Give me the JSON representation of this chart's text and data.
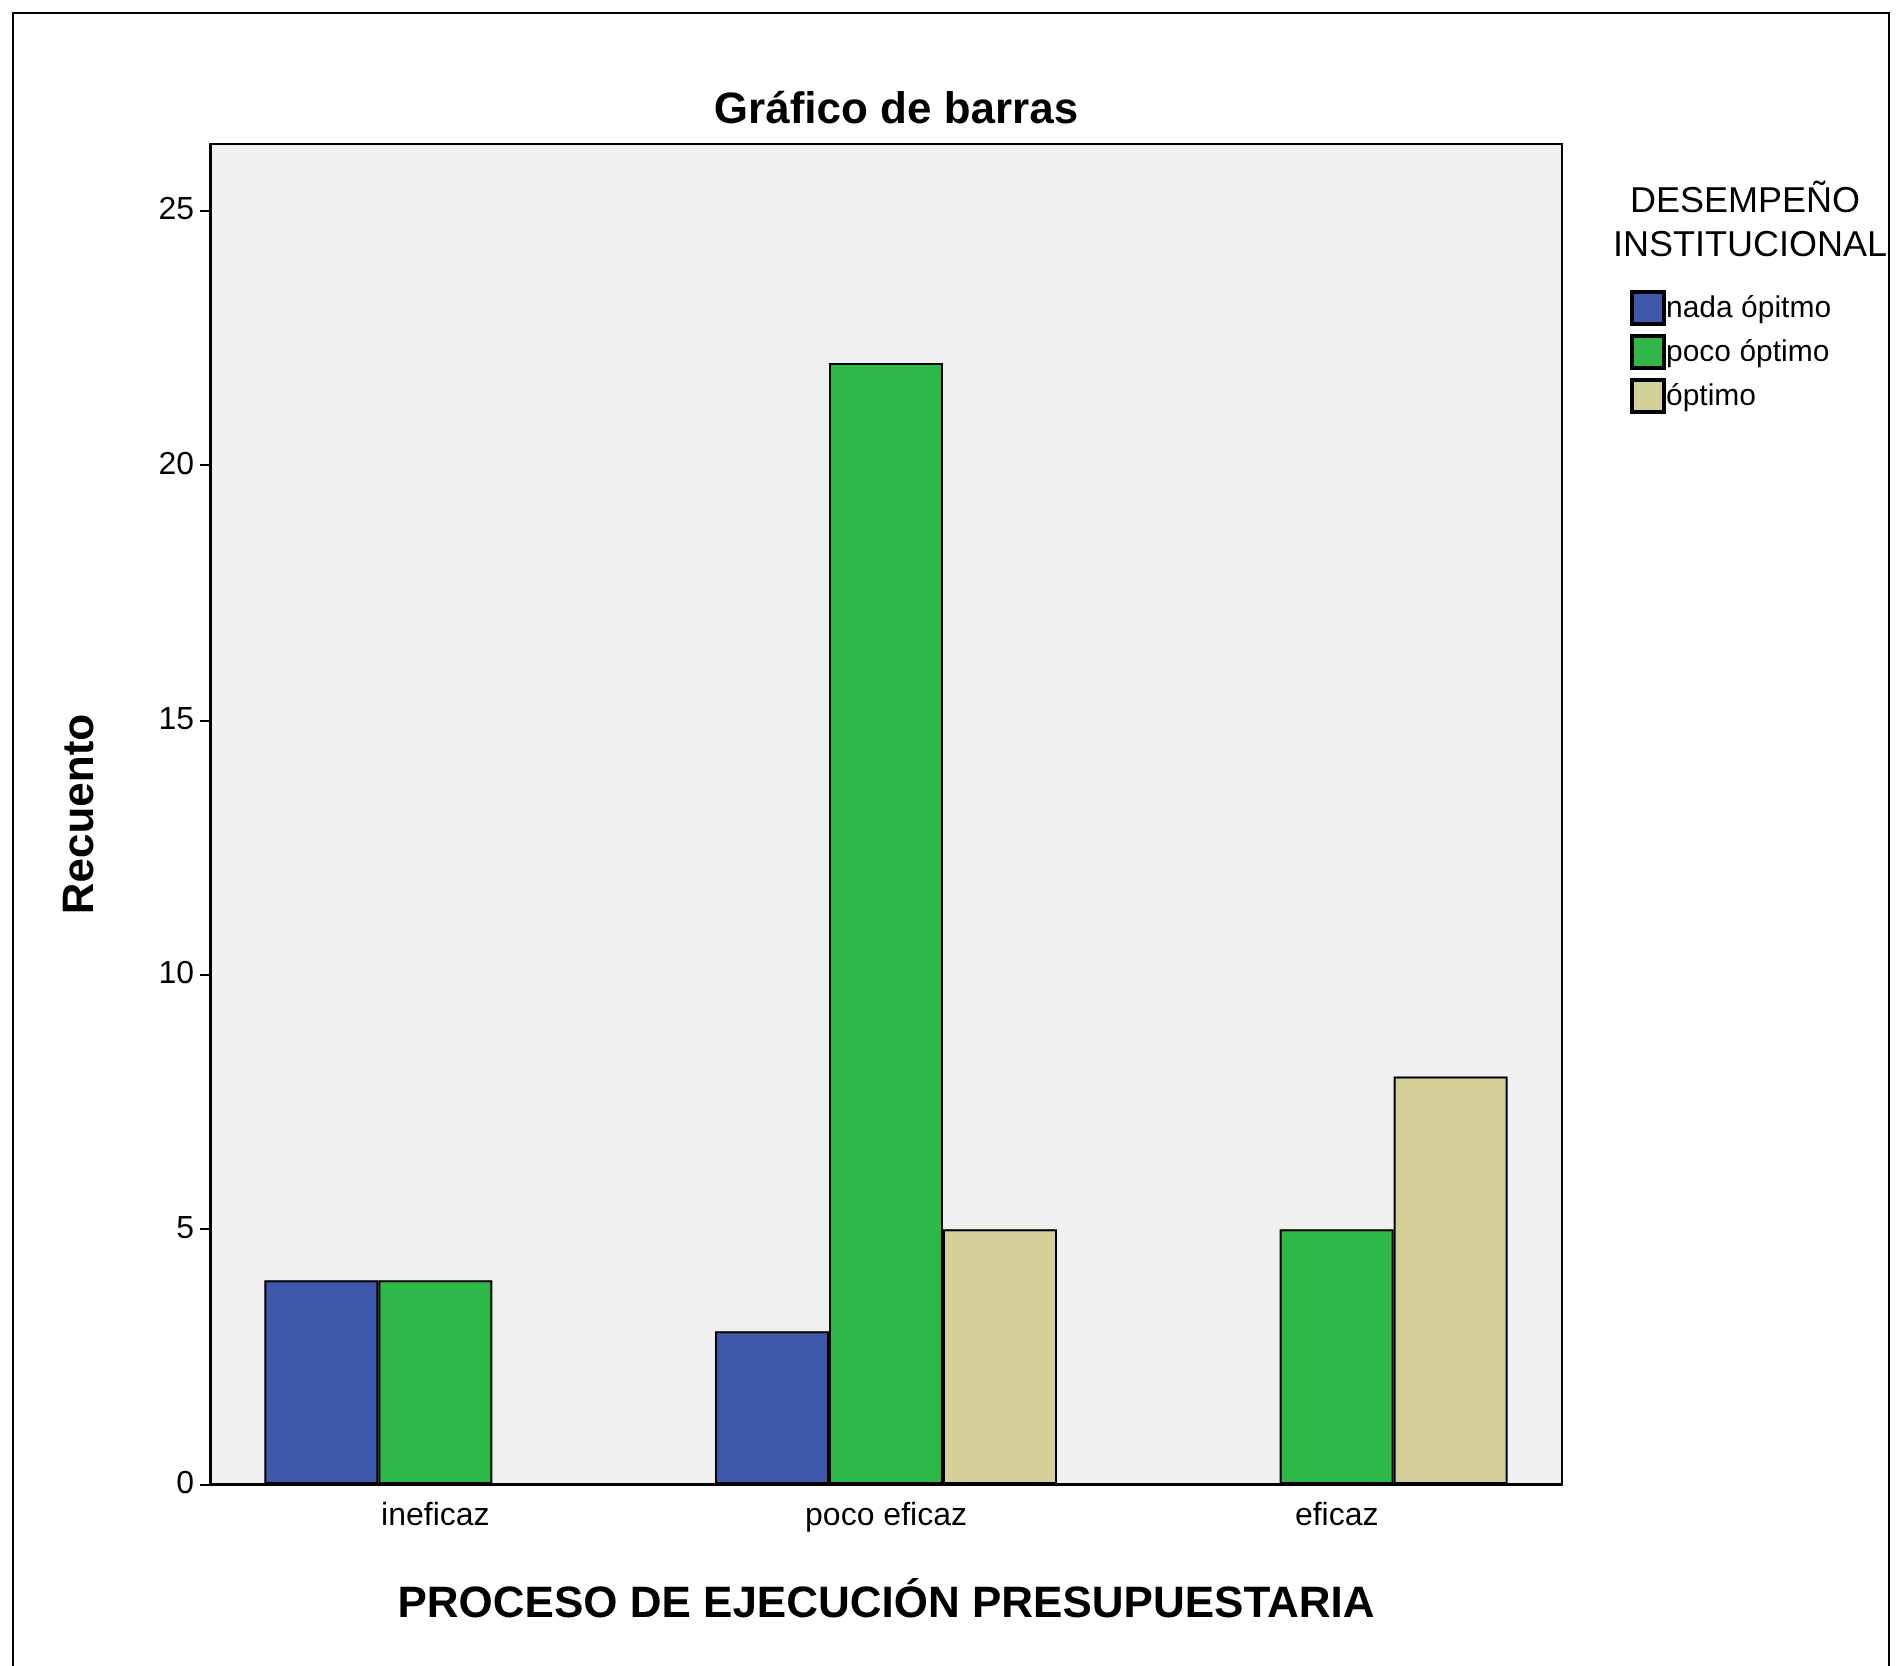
{
  "chart_data": {
    "type": "bar",
    "title": "Gráfico de barras",
    "xlabel": "PROCESO DE EJECUCIÓN PRESUPUESTARIA",
    "ylabel": "Recuento",
    "legend_title": "DESEMPEÑO INSTITUCIONAL",
    "categories": [
      "ineficaz",
      "poco eficaz",
      "eficaz"
    ],
    "series": [
      {
        "name": "nada ópitmo",
        "color": "#3e58ac",
        "values": [
          4,
          3,
          null
        ]
      },
      {
        "name": "poco óptimo",
        "color": "#2eb848",
        "values": [
          4,
          22,
          5
        ]
      },
      {
        "name": "óptimo",
        "color": "#d4cf98",
        "values": [
          null,
          5,
          8
        ]
      }
    ],
    "ylim": [
      0,
      26.3
    ],
    "yticks": [
      0,
      5,
      10,
      15,
      20,
      25
    ],
    "grid": false,
    "legend": "top right"
  }
}
